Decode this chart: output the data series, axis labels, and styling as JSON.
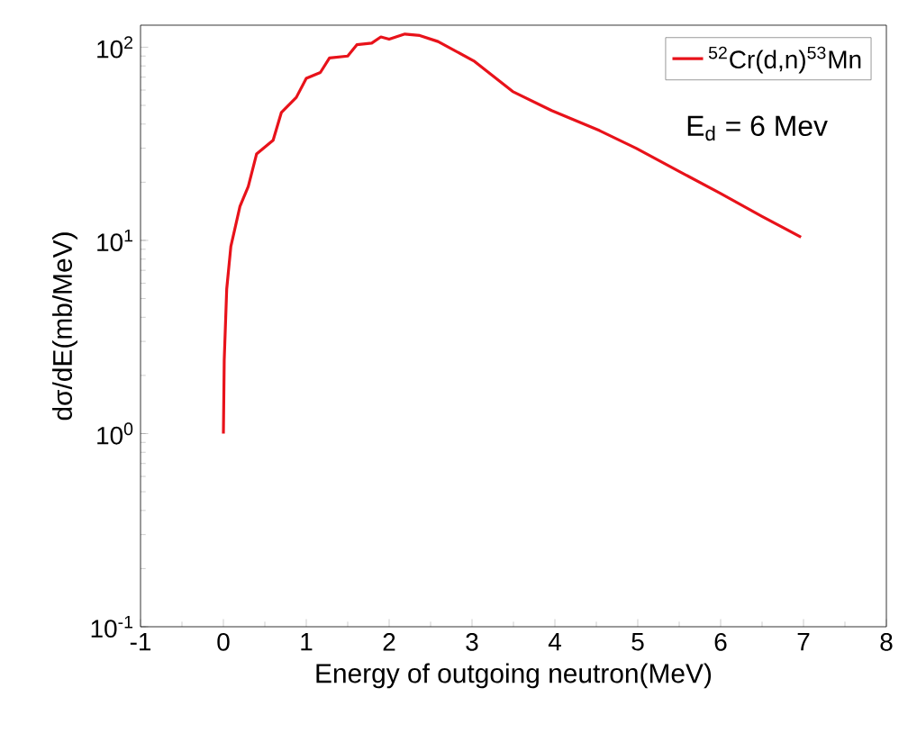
{
  "chart_data": {
    "type": "line",
    "xlabel": "Energy of outgoing neutron(MeV)",
    "ylabel": "dσ/dE(mb/MeV)",
    "log": "y",
    "legend": "top right",
    "annotations": [
      "E$_{d}$ = 6 Mev"
    ],
    "xlim": [
      -1,
      8
    ],
    "xticks": [
      -1,
      0,
      1,
      2,
      3,
      4,
      5,
      6,
      7,
      8
    ],
    "ylim": [
      0.1,
      130
    ],
    "yticks": [
      {
        "value": 0.1,
        "label": "10$^{-1}$"
      },
      {
        "value": 1,
        "label": "10$^{0}$"
      },
      {
        "value": 10,
        "label": "10$^{1}$"
      },
      {
        "value": 100,
        "label": "10$^{2}$"
      }
    ],
    "series": [
      {
        "name": "$^{52}$Cr(d,n)$^{53}$Mn",
        "color": "#e8121a",
        "x": [
          0,
          0.01,
          0.04,
          0.09,
          0.2,
          0.3,
          0.4,
          0.6,
          0.7,
          0.88,
          1.0,
          1.17,
          1.28,
          1.5,
          1.61,
          1.79,
          1.9,
          2.0,
          2.19,
          2.37,
          2.59,
          3.02,
          3.49,
          3.96,
          4.54,
          4.98,
          5.52,
          5.99,
          6.5,
          6.97
        ],
        "values": [
          1.0,
          2.4,
          5.6,
          9.3,
          15,
          19,
          28,
          33,
          46,
          55,
          69,
          74,
          88,
          90,
          103,
          105,
          113,
          110,
          117,
          115,
          107,
          85,
          59,
          47,
          37,
          30,
          22.5,
          17.6,
          13.3,
          10.4
        ]
      }
    ]
  }
}
